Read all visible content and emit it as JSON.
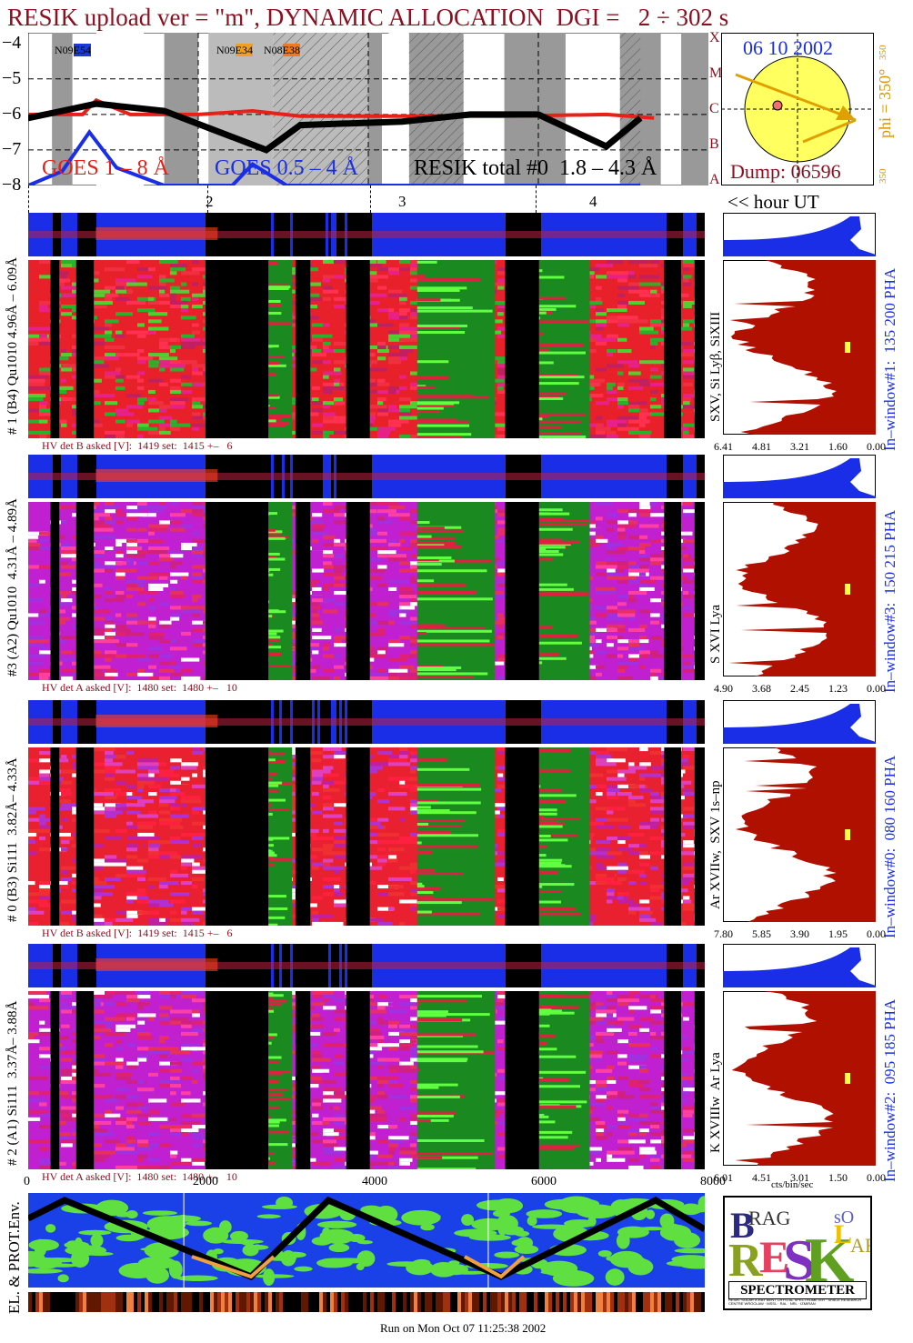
{
  "header": {
    "title": "RESIK upload ver = \"m\", DYNAMIC ALLOCATION  DGI =   2 ÷ 302 s"
  },
  "goes_panel": {
    "y_ticks": [
      "−4",
      "−5",
      "−6",
      "−7",
      "−8"
    ],
    "flare_class_ticks": [
      "X",
      "M",
      "C",
      "B",
      "A"
    ],
    "region_labels": [
      {
        "pre": "N09",
        "box": "E54",
        "box_color": "#1a3bd8"
      },
      {
        "pre": "N09",
        "box": "E34",
        "box_color": "#f0a020"
      },
      {
        "pre": "N08",
        "box": "E38",
        "box_color": "#f07820"
      }
    ],
    "legend": {
      "goes_long": "GOES 1 – 8 Å",
      "goes_short": "GOES 0.5 – 4 Å",
      "resik_total": "RESIK total #0  1.8 – 4.3 Å"
    },
    "colors": {
      "goes_long": "#e8201a",
      "goes_short": "#1a2ee8",
      "resik": "#000000"
    }
  },
  "sun_panel": {
    "date": "06 10 2002",
    "phi_label": "phi = 350°",
    "phi_tick_top": "350",
    "phi_tick_bottom": "350",
    "dump": "Dump: 06596"
  },
  "hour_axis": {
    "labels": [
      "2",
      "3",
      "4"
    ],
    "caption": "<< hour UT"
  },
  "detectors": [
    {
      "left_label": "# 1 (B4) Qu1010 4.96Å – 6.09Å",
      "line_label": "SXV, Si Lyβ, SiXIII",
      "window_label": "In–window#1:  135 200 PHA",
      "hv_text": "HV det B asked [V]:  1419 set:  1415 +–   6",
      "axis_ticks": [
        "6.41",
        "4.81",
        "3.21",
        "1.60",
        "0.00"
      ],
      "palette": "green"
    },
    {
      "left_label": "#3 (A2) Qu1010  4.31Å – 4.89Å",
      "line_label": "S XVI Lya",
      "window_label": "In–window#3:  150 215 PHA",
      "hv_text": "HV det A asked [V]:  1480 set:  1480 +–   10",
      "axis_ticks": [
        "4.90",
        "3.68",
        "2.45",
        "1.23",
        "0.00"
      ],
      "palette": "violet"
    },
    {
      "left_label": "# 0 (B3) Si111  3.82Å– 4.33Å",
      "line_label": "Ar XVIIw,  SXV 1s–np",
      "window_label": "In–window#0:  080 160 PHA",
      "hv_text": "HV det B asked [V]:  1419 set:  1415 +–   6",
      "axis_ticks": [
        "7.80",
        "5.85",
        "3.90",
        "1.95",
        "0.00"
      ],
      "palette": "red"
    },
    {
      "left_label": "# 2 (A1) Si111  3.37Å– 3.88Å",
      "line_label": "K XVIIIw  Ar Lya",
      "window_label": "In–window#2:  095 185 PHA",
      "hv_text": "HV det A asked [V]:  1480 set:  1480 +–   10",
      "axis_ticks": [
        "6.01",
        "4.51",
        "3.01",
        "1.50",
        "0.00"
      ],
      "palette": "violet"
    }
  ],
  "bottom_axis": {
    "ticks": [
      "0",
      "2000",
      "4000",
      "6000",
      "8000"
    ],
    "unit": "cts/bin/sec"
  },
  "env_panel": {
    "label": "EL. & PROT.Env."
  },
  "logo": {
    "text": "SPECTROMETER",
    "fine_print": "RESIK: SOLAR X-RAY BENT CRYSTAL SPECTROMETER · SPACE RESEARCH CENTRE WROCŁAW · MSSL · RAL · NRL · IZMIRAN"
  },
  "footer": {
    "run_text": "Run on Mon Oct 07 11:25:38 2002"
  },
  "chart_data": [
    {
      "type": "line",
      "title": "",
      "yticks": [
        -4,
        -5,
        -6,
        -7,
        -8
      ],
      "ylim": [
        -8,
        -3.7
      ],
      "series": [
        {
          "name": "GOES 1 – 8 Å",
          "x": [
            0,
            0.08,
            0.1,
            0.15,
            0.25,
            0.33,
            0.4,
            0.55,
            0.7,
            0.85,
            0.92
          ],
          "values": [
            -6.0,
            -6.0,
            -5.6,
            -6.0,
            -6.0,
            -5.9,
            -6.05,
            -6.05,
            -6.05,
            -6.0,
            -6.1
          ]
        },
        {
          "name": "GOES 0.5 – 4 Å",
          "x": [
            0,
            0.05,
            0.09,
            0.13,
            0.2,
            0.3,
            0.33,
            0.38,
            0.45,
            0.6,
            0.9
          ],
          "values": [
            -8.0,
            -7.6,
            -6.5,
            -7.5,
            -8.0,
            -8.0,
            -7.4,
            -8.0,
            -8.0,
            -8.0,
            -8.0
          ]
        },
        {
          "name": "RESIK total #0  1.8 – 4.3 Å",
          "x": [
            0,
            0.05,
            0.1,
            0.2,
            0.35,
            0.4,
            0.55,
            0.65,
            0.75,
            0.85,
            0.9
          ],
          "values": [
            -6.1,
            -5.9,
            -5.7,
            -5.9,
            -7.0,
            -6.3,
            -6.2,
            -6.0,
            -6.0,
            -6.9,
            -6.1
          ]
        }
      ]
    },
    {
      "type": "heatmap",
      "title": "",
      "xlabel": "hour UT",
      "xticks": [
        "2",
        "3",
        "4"
      ]
    },
    {
      "type": "area",
      "xlabel": "cts/bin/sec",
      "xticks": [
        "0",
        "2000",
        "4000",
        "6000",
        "8000"
      ]
    }
  ]
}
